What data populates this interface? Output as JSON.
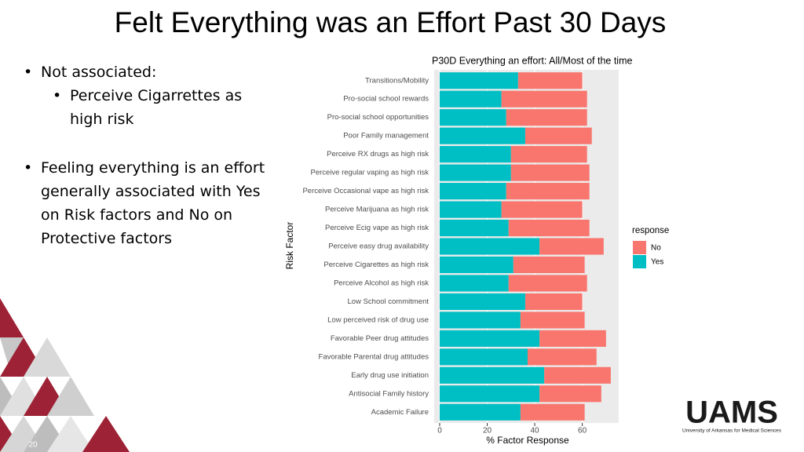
{
  "title": "Felt Everything was an Effort Past 30 Days",
  "bullets": [
    {
      "text": "Not associated:",
      "sub": [
        "Perceive Cigarrettes as high risk"
      ]
    },
    {
      "text": "Feeling everything is an effort generally associated with Yes on Risk factors and No on Protective factors"
    }
  ],
  "slide_number": "20",
  "logo": {
    "name": "UAMS",
    "subtitle": "University of Arkansas for Medical Sciences"
  },
  "chart_data": {
    "type": "stacked-bar-horizontal",
    "title": "P30D Everything an effort: All/Most of the time",
    "x_label": "% Factor Response",
    "y_label": "Risk Factor",
    "legend_title": "response",
    "legend_position": "right",
    "categories": [
      "Transitions/Mobility",
      "Pro-social school rewards",
      "Pro-social school opportunities",
      "Poor Family management",
      "Perceive RX drugs as high risk",
      "Perceive regular vaping as high risk",
      "Perceive Occasional vape as high risk",
      "Perceive Marijuana as high risk",
      "Perceive Ecig vape as high risk",
      "Perceive easy drug availability",
      "Perceive Cigarettes as high risk",
      "Perceive Alcohol as high risk",
      "Low School commitment",
      "Low perceived risk of drug use",
      "Favorable Peer drug attitudes",
      "Favorable Parental drug attitudes",
      "Early drug use initiation",
      "Antisocial Family history",
      "Academic Failure"
    ],
    "series": [
      {
        "name": "Yes",
        "color": "#00bfc4",
        "values": [
          33,
          26,
          28,
          36,
          30,
          30,
          28,
          26,
          29,
          42,
          31,
          29,
          36,
          34,
          42,
          37,
          44,
          42,
          34
        ]
      },
      {
        "name": "No",
        "color": "#f8766d",
        "values": [
          27,
          36,
          34,
          28,
          32,
          33,
          35,
          34,
          34,
          27,
          30,
          33,
          24,
          27,
          28,
          29,
          28,
          26,
          27
        ]
      }
    ],
    "xlim": [
      0,
      75
    ],
    "xticks": [
      0,
      20,
      40,
      60
    ],
    "grid": true
  }
}
